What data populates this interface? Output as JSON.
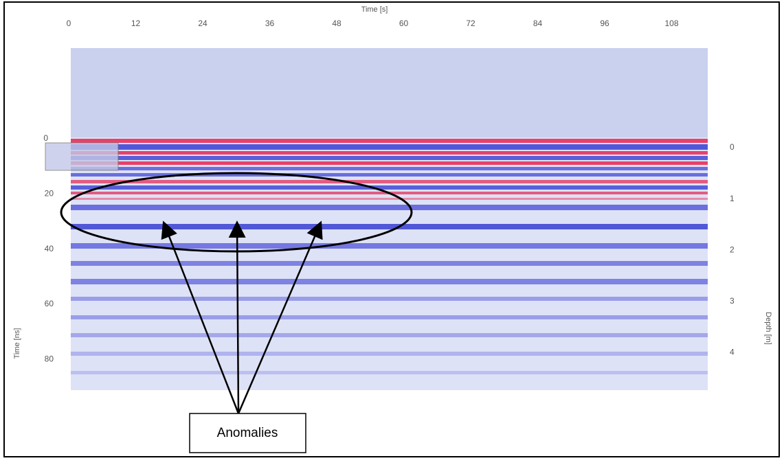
{
  "figure": {
    "top_axis": {
      "label": "Time [s]",
      "ticks": [
        0,
        12,
        24,
        36,
        48,
        60,
        72,
        84,
        96,
        108
      ]
    },
    "left_axis": {
      "label": "Time [ns]",
      "ticks": [
        0,
        20,
        40,
        60,
        80
      ]
    },
    "right_axis": {
      "label": "Depth [m]",
      "ticks": [
        0,
        1,
        2,
        3,
        4
      ]
    },
    "annotation": "Anomalies"
  }
}
